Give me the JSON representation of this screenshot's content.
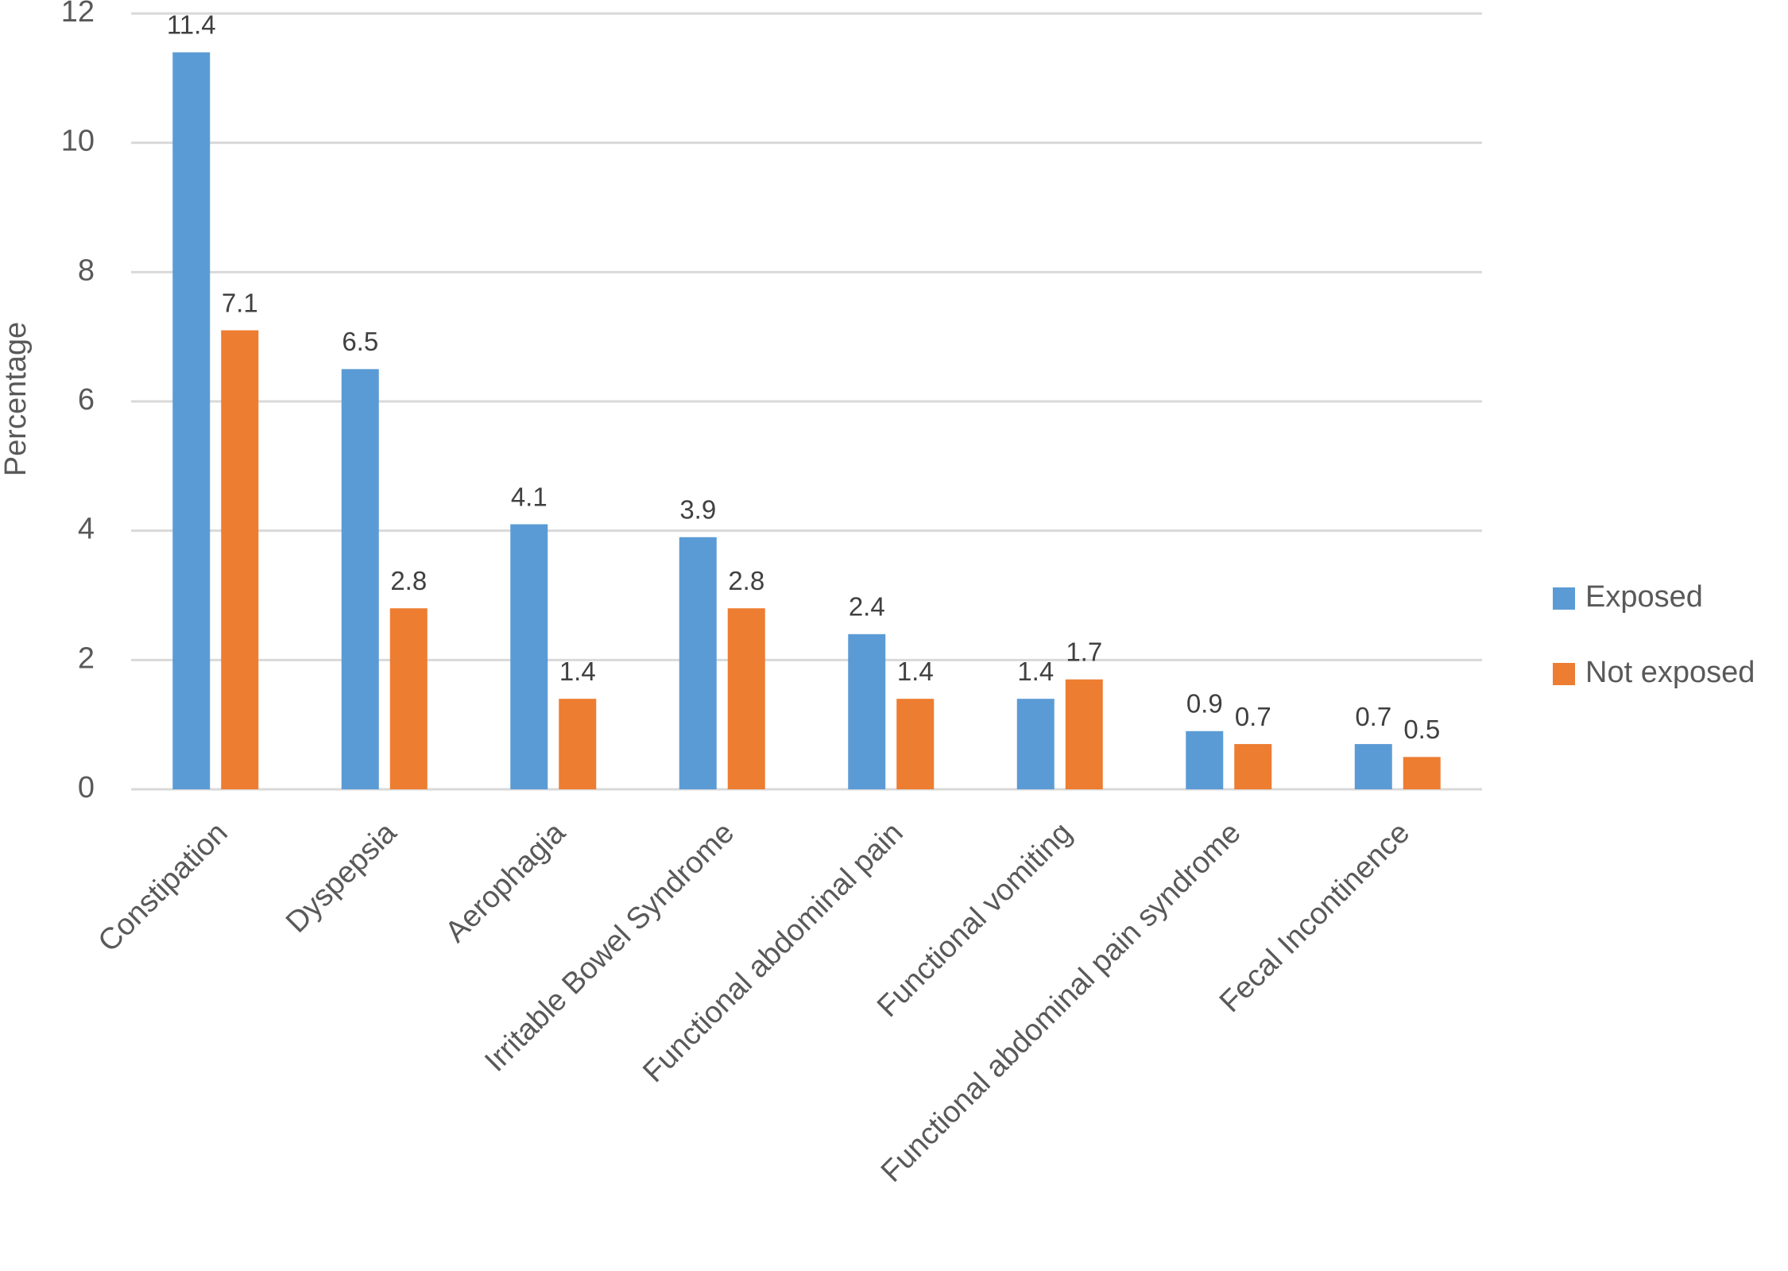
{
  "chart_data": {
    "type": "bar",
    "y_label": "Percentage",
    "categories": [
      "Constipation",
      "Dyspepsia",
      "Aerophagia",
      "Irritable Bowel Syndrome",
      "Functional abdominal pain",
      "Functional vomiting",
      "Functional abdominal pain syndrome",
      "Fecal Incontinence"
    ],
    "series": [
      {
        "name": "Exposed",
        "color": "#5b9bd5",
        "values": [
          11.4,
          6.5,
          4.1,
          3.9,
          2.4,
          1.4,
          0.9,
          0.7
        ]
      },
      {
        "name": "Not exposed",
        "color": "#ed7d31",
        "values": [
          7.1,
          2.8,
          1.4,
          2.8,
          1.4,
          1.7,
          0.7,
          0.5
        ]
      }
    ],
    "ylim": [
      0,
      12
    ],
    "yticks": [
      0,
      2,
      4,
      6,
      8,
      10,
      12
    ],
    "grid": true,
    "legend": "right"
  }
}
